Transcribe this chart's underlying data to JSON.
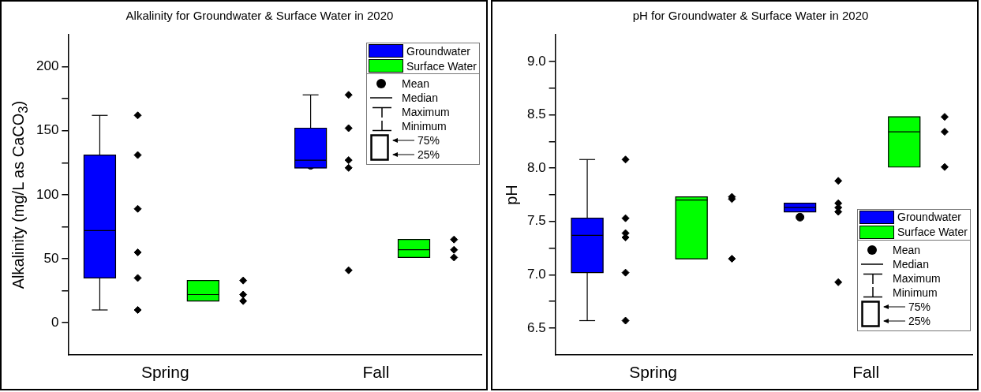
{
  "chart_data": [
    {
      "type": "box",
      "title": "Alkalinity for Groundwater & Surface Water in 2020",
      "ylabel": "Alkalinity (mg/L as CaCO$_{3}$)",
      "categories": [
        "Spring",
        "Fall"
      ],
      "ylim": [
        -25,
        225
      ],
      "yticks": [
        0,
        {
          "value": 25,
          "label": null
        },
        50,
        {
          "value": 75,
          "label": null
        },
        100,
        {
          "value": 125,
          "label": null
        },
        150,
        {
          "value": 175,
          "label": null
        },
        200
      ],
      "legend": "top right",
      "grid": false,
      "series": [
        {
          "name": "Groundwater",
          "color": "#0000ff",
          "boxes": [
            {
              "low": 10,
              "q1": 35,
              "median": 72,
              "q3": 131,
              "high": 162,
              "mean": 80
            },
            {
              "low": 121,
              "q1": 121,
              "median": 127,
              "q3": 152,
              "high": 178,
              "mean": 123
            }
          ]
        },
        {
          "name": "Surface Water",
          "color": "#00ff00",
          "boxes": [
            {
              "low": 17,
              "q1": 17,
              "median": 22,
              "q3": 33,
              "high": 33,
              "mean": 24
            },
            {
              "low": 51,
              "q1": 51,
              "median": 57,
              "q3": 65,
              "high": 65,
              "mean": 58
            }
          ]
        },
        {
          "type": "scatter",
          "color": "#000000",
          "marker": "diamond",
          "x": [
            "Spring",
            "Spring",
            "Spring",
            "Spring",
            "Spring",
            "Spring",
            "Fall",
            "Fall",
            "Fall",
            "Fall",
            "Fall"
          ],
          "values": [
            162,
            131,
            89,
            55,
            35,
            10,
            178,
            152,
            127,
            121,
            41
          ]
        },
        {
          "type": "scatter",
          "color": "#000000",
          "marker": "diamond",
          "x": [
            "Spring",
            "Spring",
            "Spring",
            "Fall",
            "Fall",
            "Fall"
          ],
          "values": [
            33,
            22,
            17,
            65,
            57,
            51
          ]
        }
      ],
      "annotations": [
        "Mean",
        "Median",
        "Maximum",
        "Minimum",
        "75%",
        "25%"
      ]
    },
    {
      "type": "box",
      "title": "pH for Groundwater & Surface Water in 2020",
      "ylabel": "pH",
      "categories": [
        "Spring",
        "Fall"
      ],
      "ylim": [
        6.25,
        9.25
      ],
      "yticks": [
        6.5,
        {
          "value": 6.75,
          "label": null
        },
        {
          "value": 7,
          "label": "7.0"
        },
        {
          "value": 7.25,
          "label": null
        },
        7.5,
        {
          "value": 7.75,
          "label": null
        },
        {
          "value": 8,
          "label": "8.0"
        },
        {
          "value": 8.25,
          "label": null
        },
        8.5,
        {
          "value": 8.75,
          "label": null
        },
        {
          "value": 9,
          "label": "9.0"
        }
      ],
      "legend": "bottom right",
      "grid": false,
      "series": [
        {
          "name": "Groundwater",
          "color": "#0000ff",
          "boxes": [
            {
              "low": 6.57,
              "q1": 7.02,
              "median": 7.37,
              "q3": 7.53,
              "high": 8.08,
              "mean": 7.32
            },
            {
              "low": 7.59,
              "q1": 7.59,
              "median": 7.63,
              "q3": 7.67,
              "high": 7.67,
              "mean": 7.54
            }
          ]
        },
        {
          "name": "Surface Water",
          "color": "#00ff00",
          "boxes": [
            {
              "low": 7.15,
              "q1": 7.15,
              "median": 7.7,
              "q3": 7.73,
              "high": 7.73,
              "mean": 7.53
            },
            {
              "low": 8.01,
              "q1": 8.01,
              "median": 8.34,
              "q3": 8.48,
              "high": 8.48,
              "mean": 8.28
            }
          ]
        },
        {
          "type": "scatter",
          "color": "#000000",
          "marker": "diamond",
          "x": [
            "Spring",
            "Spring",
            "Spring",
            "Spring",
            "Spring",
            "Spring",
            "Fall",
            "Fall",
            "Fall",
            "Fall",
            "Fall"
          ],
          "values": [
            8.08,
            7.53,
            7.39,
            7.35,
            7.02,
            6.57,
            7.88,
            7.67,
            7.63,
            7.59,
            6.93
          ]
        },
        {
          "type": "scatter",
          "color": "#000000",
          "marker": "diamond",
          "x": [
            "Spring",
            "Spring",
            "Spring",
            "Fall",
            "Fall",
            "Fall"
          ],
          "values": [
            7.73,
            7.71,
            7.15,
            8.48,
            8.34,
            8.01
          ]
        }
      ],
      "annotations": [
        "Mean",
        "Median",
        "Maximum",
        "Minimum",
        "75%",
        "25%"
      ]
    }
  ]
}
